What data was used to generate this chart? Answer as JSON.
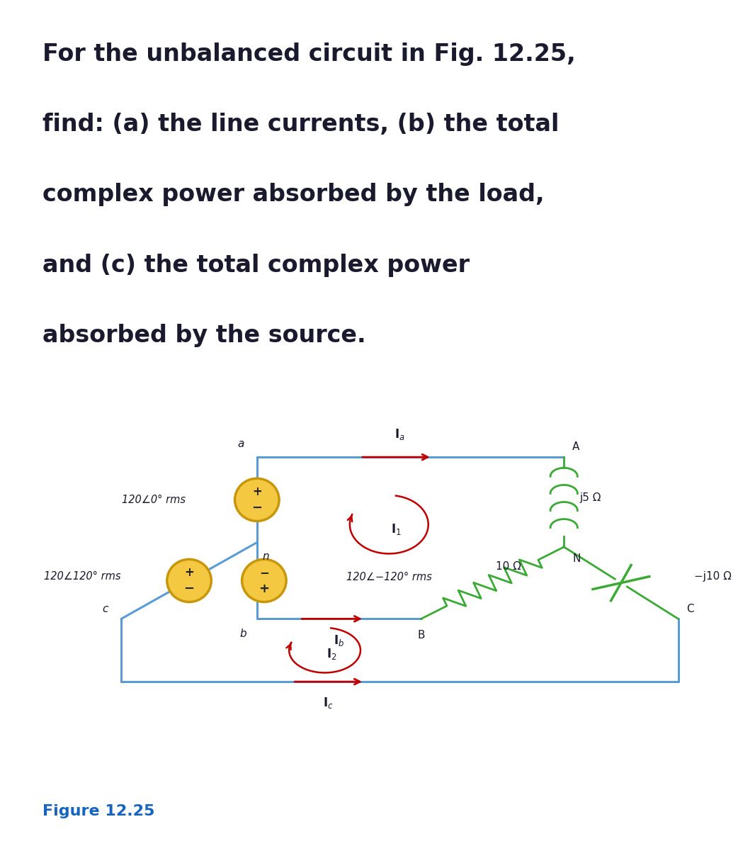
{
  "title_lines": [
    "For the unbalanced circuit in Fig. 12.25,",
    "find: (a) the line currents, (b) the total",
    "complex power absorbed by the load,",
    "and (c) the total complex power",
    "absorbed by the source."
  ],
  "fig_label": "Figure 12.25",
  "bg_color": "#ffffff",
  "text_color": "#1a1a2e",
  "circuit_line_color": "#5b9bd5",
  "component_color": "#3aaa35",
  "source_fill": "#f5c842",
  "source_border": "#c8960a",
  "arrow_color": "#c00000",
  "fig_label_color": "#1565c0",
  "source_labels": [
    "120∠0° rms",
    "120∠120° rms",
    "120∠−120° rms"
  ],
  "component_labels": [
    "j5 Ω",
    "10 Ω",
    "−j10 Ω"
  ]
}
